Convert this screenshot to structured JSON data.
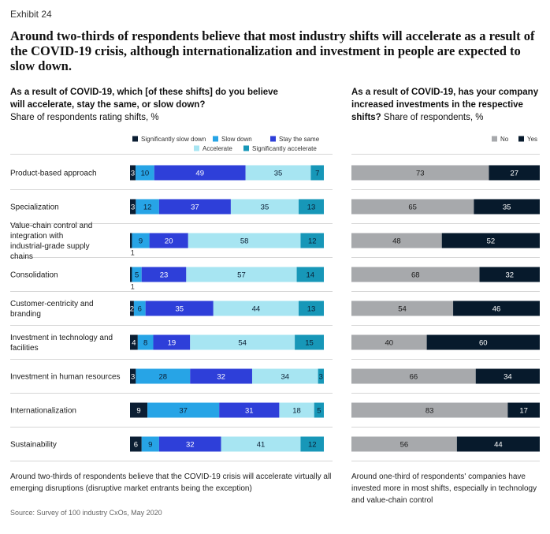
{
  "exhibit": "Exhibit 24",
  "title": "Around two-thirds of respondents believe that most industry shifts will accelerate as a result of the COVID-19 crisis, although internationalization and investment in people are expected to slow down.",
  "left_panel": {
    "question": "As a result of COVID-19, which [of these shifts] do you believe will accelerate, stay the same, or slow down?",
    "unit": "Share of respondents rating shifts, %",
    "note": "Around two-thirds of respondents believe that the COVID-19 crisis will accelerate virtually all emerging disruptions (disruptive market entrants being the exception)"
  },
  "right_panel": {
    "question": "As a result of COVID-19, has your company increased investments in the respective shifts?",
    "unit": "Share of respondents, %",
    "note": "Around one-third of respondents' companies have invested more in most shifts, especially in technology and value-chain control"
  },
  "source": "Source: Survey of 100 industry CxOs, May 2020",
  "colors": {
    "significantly_slow_down": "#0b1e33",
    "slow_down": "#27a4e6",
    "stay_the_same": "#2e3fd9",
    "accelerate": "#a7e5f2",
    "significantly_accelerate": "#1797b8",
    "no": "#a7a9ac",
    "yes": "#071a2c"
  },
  "chart_data": [
    {
      "type": "bar",
      "orientation": "horizontal",
      "stacked": true,
      "xlim": [
        0,
        100
      ],
      "legend_position": "top-right",
      "categories": [
        "Product-based approach",
        "Specialization",
        "Value-chain control and integration with industrial-grade supply chains",
        "Consolidation",
        "Customer-centricity and branding",
        "Investment in technology and facilities",
        "Investment in human resources",
        "Internationalization",
        "Sustainability"
      ],
      "series": [
        {
          "name": "Significantly slow down",
          "values": [
            3,
            3,
            1,
            1,
            2,
            4,
            3,
            9,
            6
          ]
        },
        {
          "name": "Slow down",
          "values": [
            10,
            12,
            9,
            5,
            6,
            8,
            28,
            37,
            9
          ]
        },
        {
          "name": "Stay the same",
          "values": [
            49,
            37,
            20,
            23,
            35,
            19,
            32,
            31,
            32
          ]
        },
        {
          "name": "Accelerate",
          "values": [
            35,
            35,
            58,
            57,
            44,
            54,
            34,
            18,
            41
          ]
        },
        {
          "name": "Significantly accelerate",
          "values": [
            7,
            13,
            12,
            14,
            13,
            15,
            3,
            5,
            12
          ]
        }
      ]
    },
    {
      "type": "bar",
      "orientation": "horizontal",
      "stacked": true,
      "xlim": [
        0,
        100
      ],
      "legend_position": "top-right",
      "categories": [
        "Product-based approach",
        "Specialization",
        "Value-chain control and integration with industrial-grade supply chains",
        "Consolidation",
        "Customer-centricity and branding",
        "Investment in technology and facilities",
        "Investment in human resources",
        "Internationalization",
        "Sustainability"
      ],
      "series": [
        {
          "name": "No",
          "values": [
            73,
            65,
            48,
            68,
            54,
            40,
            66,
            83,
            56
          ]
        },
        {
          "name": "Yes",
          "values": [
            27,
            35,
            52,
            32,
            46,
            60,
            34,
            17,
            44
          ]
        }
      ]
    }
  ]
}
